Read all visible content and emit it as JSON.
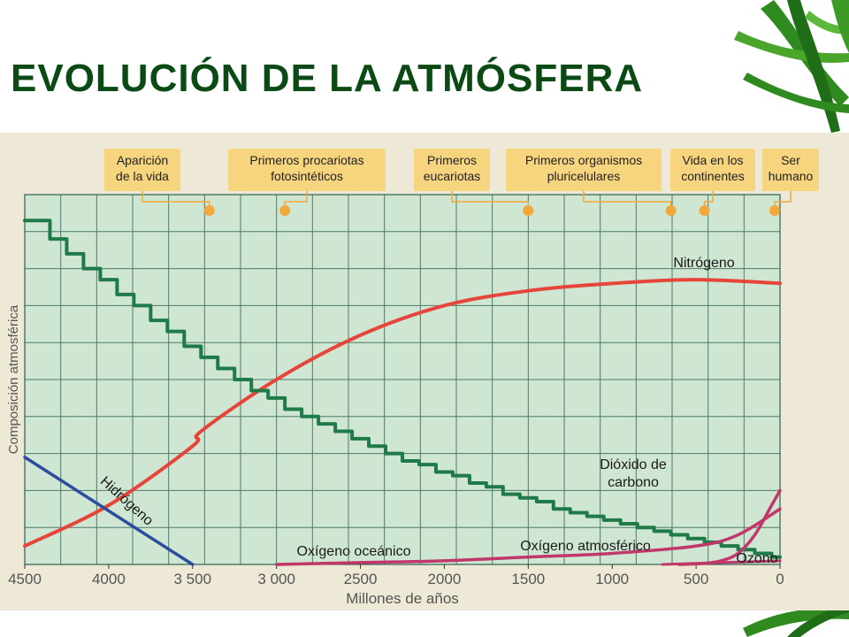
{
  "slide": {
    "title": "EVOLUCIÓN DE LA ATMÓSFERA"
  },
  "colors": {
    "background_page": "#eee8d6",
    "plot_area": "#cfe6d3",
    "grid": "#2f5f4d",
    "label_box": "#f6d57e",
    "label_dot": "#f2a83a",
    "nitrogen": "#e6453a",
    "carbon_dioxide": "#1e7a47",
    "hydrogen": "#2e4c9c",
    "oxygen": "#c2376b",
    "title": "#0b4a14"
  },
  "chart_data": {
    "type": "line",
    "xlabel": "Millones de años",
    "ylabel": "Composición atmosférica",
    "x_reversed": true,
    "xlim": [
      4500,
      0
    ],
    "ylim": [
      0,
      100
    ],
    "grid": true,
    "x_ticks": [
      4500,
      4000,
      3500,
      3000,
      2500,
      2000,
      1500,
      1000,
      500,
      0
    ],
    "x_tick_labels": [
      "4500",
      "4000",
      "3 500",
      "3 000",
      "2500",
      "2000",
      "1500",
      "1000",
      "500",
      "0"
    ],
    "events": [
      {
        "label": "Aparición de la vida",
        "x": 3400
      },
      {
        "label": "Primeros procariotas fotosintéticos",
        "x": 2950
      },
      {
        "label": "Primeros eucariotas",
        "x": 1500
      },
      {
        "label": "Primeros organismos pluricelulares",
        "x": 650
      },
      {
        "label": "Vida en los continentes",
        "x": 450
      },
      {
        "label": "Ser humano",
        "x": 10
      }
    ],
    "series": [
      {
        "name": "Nitrógeno",
        "style": "smooth",
        "color": "#e6453a",
        "x": [
          4500,
          4000,
          3500,
          3450,
          3000,
          2500,
          2000,
          1500,
          1000,
          500,
          0
        ],
        "y": [
          5,
          16,
          32,
          36,
          50,
          62,
          70,
          74,
          76,
          77,
          76
        ]
      },
      {
        "name": "Dióxido de carbono",
        "style": "steps",
        "color": "#1e7a47",
        "x": [
          4500,
          4350,
          4250,
          4150,
          4050,
          3950,
          3850,
          3750,
          3650,
          3550,
          3450,
          3350,
          3250,
          3150,
          3050,
          2950,
          2850,
          2750,
          2650,
          2550,
          2450,
          2350,
          2250,
          2150,
          2050,
          1950,
          1850,
          1750,
          1650,
          1550,
          1450,
          1350,
          1250,
          1150,
          1050,
          950,
          850,
          750,
          650,
          550,
          450,
          350,
          250,
          150,
          50,
          0
        ],
        "y": [
          93,
          88,
          84,
          80,
          77,
          73,
          70,
          66,
          63,
          59,
          56,
          53,
          50,
          47,
          45,
          42,
          40,
          38,
          36,
          34,
          32,
          30,
          28,
          27,
          25,
          24,
          22,
          21,
          19,
          18,
          17,
          15,
          14,
          13,
          12,
          11,
          10,
          9,
          8,
          7,
          6,
          5,
          4,
          3,
          2,
          2
        ]
      },
      {
        "name": "Hidrógeno",
        "style": "line",
        "color": "#2e4c9c",
        "x": [
          4500,
          3500
        ],
        "y": [
          29,
          0
        ]
      },
      {
        "name": "Oxígeno oceánico",
        "style": "smooth",
        "color": "#c2376b",
        "x": [
          3000,
          2500,
          2000,
          1500,
          1000,
          500,
          250,
          0
        ],
        "y": [
          0,
          0.5,
          1,
          2,
          3,
          5,
          8,
          15
        ]
      },
      {
        "name": "Oxígeno atmosférico",
        "style": "smooth",
        "color": "#c2376b",
        "x": [
          600,
          450,
          350,
          250,
          150,
          50,
          0
        ],
        "y": [
          0,
          0.3,
          1,
          3,
          8,
          16,
          20
        ]
      },
      {
        "name": "Ozono",
        "style": "line",
        "color": "#c2376b",
        "x": [
          700,
          500,
          0
        ],
        "y": [
          0,
          0.3,
          1
        ]
      }
    ]
  }
}
